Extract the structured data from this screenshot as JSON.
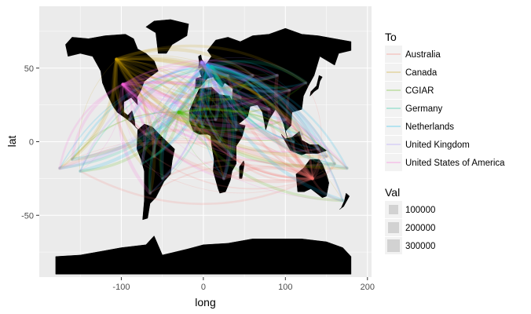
{
  "chart_data": {
    "type": "map",
    "xlabel": "long",
    "ylabel": "lat",
    "xlim": [
      -200,
      205
    ],
    "ylim": [
      -92,
      92
    ],
    "x_ticks": [
      -100,
      0,
      100,
      200
    ],
    "x_tick_labels": [
      "-100",
      "0",
      "100",
      "200"
    ],
    "y_ticks": [
      -50,
      0,
      50
    ],
    "y_tick_labels": [
      "-50",
      "0",
      "50"
    ],
    "grid": true,
    "legend_position": "right",
    "color_legend": {
      "title": "To",
      "entries": [
        {
          "name": "Australia",
          "color": "#F8766D",
          "lon": 133,
          "lat": -25
        },
        {
          "name": "Canada",
          "color": "#C49A00",
          "lon": -106,
          "lat": 56
        },
        {
          "name": "CGIAR",
          "color": "#53B400",
          "lon": -30,
          "lat": 20
        },
        {
          "name": "Germany",
          "color": "#00C094",
          "lon": 10,
          "lat": 51
        },
        {
          "name": "Netherlands",
          "color": "#00B6EB",
          "lon": 5,
          "lat": 52
        },
        {
          "name": "United Kingdom",
          "color": "#A58AFF",
          "lon": -2,
          "lat": 54
        },
        {
          "name": "United States of America",
          "color": "#FB61D7",
          "lon": -98,
          "lat": 39
        }
      ]
    },
    "size_legend": {
      "title": "Val",
      "entries": [
        {
          "label": "100000",
          "value": 100000
        },
        {
          "label": "200000",
          "value": 200000
        },
        {
          "label": "300000",
          "value": 300000
        }
      ]
    },
    "flow_origins": [
      {
        "lon": -160,
        "lat": -12
      },
      {
        "lon": -150,
        "lat": -20
      },
      {
        "lon": -175,
        "lat": -18
      },
      {
        "lon": -60,
        "lat": -10
      },
      {
        "lon": -70,
        "lat": 5
      },
      {
        "lon": -75,
        "lat": -15
      },
      {
        "lon": -50,
        "lat": -25
      },
      {
        "lon": -90,
        "lat": 15
      },
      {
        "lon": -65,
        "lat": -35
      },
      {
        "lon": 0,
        "lat": 10
      },
      {
        "lon": 20,
        "lat": 0
      },
      {
        "lon": 35,
        "lat": -10
      },
      {
        "lon": 25,
        "lat": -25
      },
      {
        "lon": -10,
        "lat": 12
      },
      {
        "lon": 40,
        "lat": 8
      },
      {
        "lon": 45,
        "lat": 30
      },
      {
        "lon": 70,
        "lat": 30
      },
      {
        "lon": 80,
        "lat": 22
      },
      {
        "lon": 100,
        "lat": 15
      },
      {
        "lon": 105,
        "lat": 35
      },
      {
        "lon": 120,
        "lat": 5
      },
      {
        "lon": 110,
        "lat": 0
      },
      {
        "lon": 140,
        "lat": -5
      },
      {
        "lon": 150,
        "lat": -10
      },
      {
        "lon": 160,
        "lat": -15
      },
      {
        "lon": 175,
        "lat": -18
      },
      {
        "lon": 170,
        "lat": -40
      },
      {
        "lon": 90,
        "lat": 45
      },
      {
        "lon": 60,
        "lat": 45
      },
      {
        "lon": 30,
        "lat": 45
      },
      {
        "lon": 125,
        "lat": 40
      },
      {
        "lon": -15,
        "lat": 15
      },
      {
        "lon": 15,
        "lat": 15
      }
    ]
  }
}
